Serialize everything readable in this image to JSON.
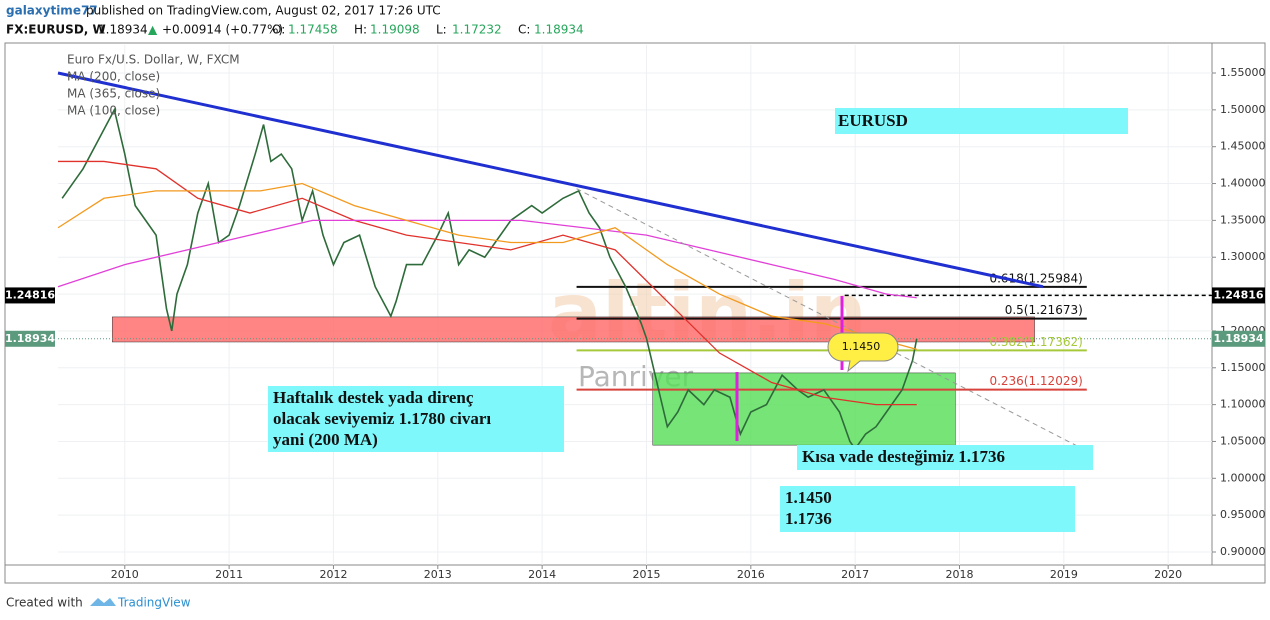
{
  "chart_data": {
    "type": "line",
    "header": {
      "author": "galaxytime77",
      "published": "published on TradingView.com, August 02, 2017 17:26 UTC",
      "symbol": "FX:EURUSD, W",
      "last": "1.18934",
      "arrow": "▲",
      "change": "+0.00914 (+0.77%)",
      "ohlc": [
        {
          "label": "O:",
          "value": "1.17458"
        },
        {
          "label": "H:",
          "value": "1.19098"
        },
        {
          "label": "L:",
          "value": "1.17232"
        },
        {
          "label": "C:",
          "value": "1.18934"
        }
      ]
    },
    "legend": [
      "Euro Fx/U.S. Dollar, W, FXCM",
      "MA (200, close)",
      "MA (365, close)",
      "MA (100, close)"
    ],
    "xlim": [
      2009.36,
      2020.42
    ],
    "xticks": [
      2010,
      2011,
      2012,
      2013,
      2014,
      2015,
      2016,
      2017,
      2018,
      2019,
      2020
    ],
    "ylim": [
      0.862,
      1.588
    ],
    "yticks": [
      {
        "value": 0.9,
        "label": "0.90000"
      },
      {
        "value": 0.95,
        "label": "0.95000"
      },
      {
        "value": 1.0,
        "label": "1.00000"
      },
      {
        "value": 1.05,
        "label": "1.05000"
      },
      {
        "value": 1.1,
        "label": "1.10000"
      },
      {
        "value": 1.15,
        "label": "1.15000"
      },
      {
        "value": 1.2,
        "label": "1.20000"
      },
      {
        "value": 1.25,
        "label": "1.25000"
      },
      {
        "value": 1.3,
        "label": "1.30000"
      },
      {
        "value": 1.35,
        "label": "1.35000"
      },
      {
        "value": 1.4,
        "label": "1.40000"
      },
      {
        "value": 1.45,
        "label": "1.45000"
      },
      {
        "value": 1.5,
        "label": "1.50000"
      },
      {
        "value": 1.55,
        "label": "1.55000"
      }
    ],
    "grid": true,
    "series": [
      {
        "name": "Euro Fx/U.S. Dollar, W, FXCM",
        "color": "#2e6b3a",
        "x": [
          2009.4,
          2009.5,
          2009.6,
          2009.75,
          2009.9,
          2010.0,
          2010.1,
          2010.2,
          2010.3,
          2010.4,
          2010.45,
          2010.5,
          2010.6,
          2010.7,
          2010.8,
          2010.9,
          2011.0,
          2011.1,
          2011.25,
          2011.33,
          2011.4,
          2011.5,
          2011.6,
          2011.7,
          2011.8,
          2011.9,
          2012.0,
          2012.1,
          2012.25,
          2012.4,
          2012.55,
          2012.6,
          2012.7,
          2012.85,
          2013.0,
          2013.1,
          2013.2,
          2013.3,
          2013.45,
          2013.55,
          2013.7,
          2013.9,
          2014.0,
          2014.2,
          2014.35,
          2014.45,
          2014.55,
          2014.65,
          2014.8,
          2014.95,
          2015.0,
          2015.1,
          2015.2,
          2015.3,
          2015.4,
          2015.55,
          2015.65,
          2015.8,
          2015.9,
          2016.0,
          2016.15,
          2016.3,
          2016.45,
          2016.55,
          2016.7,
          2016.85,
          2016.95,
          2017.0,
          2017.1,
          2017.2,
          2017.3,
          2017.45,
          2017.55,
          2017.59
        ],
        "values": [
          1.38,
          1.4,
          1.42,
          1.46,
          1.5,
          1.44,
          1.37,
          1.35,
          1.33,
          1.23,
          1.2,
          1.25,
          1.29,
          1.36,
          1.4,
          1.32,
          1.33,
          1.37,
          1.44,
          1.48,
          1.43,
          1.44,
          1.42,
          1.35,
          1.39,
          1.33,
          1.29,
          1.32,
          1.33,
          1.26,
          1.22,
          1.24,
          1.29,
          1.29,
          1.33,
          1.36,
          1.29,
          1.31,
          1.3,
          1.32,
          1.35,
          1.37,
          1.36,
          1.38,
          1.39,
          1.36,
          1.34,
          1.3,
          1.26,
          1.21,
          1.19,
          1.13,
          1.07,
          1.09,
          1.12,
          1.1,
          1.12,
          1.11,
          1.06,
          1.09,
          1.1,
          1.14,
          1.12,
          1.11,
          1.12,
          1.09,
          1.05,
          1.04,
          1.06,
          1.07,
          1.09,
          1.12,
          1.16,
          1.18934
        ]
      },
      {
        "name": "MA (200, close)",
        "color": "#e0312b",
        "x": [
          2009.36,
          2009.8,
          2010.3,
          2010.7,
          2011.2,
          2011.7,
          2012.2,
          2012.7,
          2013.2,
          2013.7,
          2014.2,
          2014.7,
          2015.2,
          2015.7,
          2016.2,
          2016.7,
          2017.2,
          2017.59
        ],
        "values": [
          1.43,
          1.43,
          1.42,
          1.38,
          1.36,
          1.38,
          1.35,
          1.33,
          1.32,
          1.31,
          1.33,
          1.31,
          1.24,
          1.17,
          1.13,
          1.11,
          1.1,
          1.1
        ]
      },
      {
        "name": "MA (365, close)",
        "color": "#e040d8",
        "x": [
          2009.36,
          2010.0,
          2010.6,
          2011.2,
          2011.8,
          2012.5,
          2013.2,
          2013.8,
          2014.4,
          2015.0,
          2015.6,
          2016.2,
          2016.8,
          2017.3,
          2017.59
        ],
        "values": [
          1.26,
          1.29,
          1.31,
          1.33,
          1.35,
          1.35,
          1.35,
          1.35,
          1.34,
          1.33,
          1.31,
          1.29,
          1.27,
          1.25,
          1.245
        ]
      },
      {
        "name": "MA (100, close)",
        "color": "#f39a1e",
        "x": [
          2009.36,
          2009.8,
          2010.3,
          2010.8,
          2011.3,
          2011.7,
          2012.2,
          2012.7,
          2013.2,
          2013.7,
          2014.2,
          2014.7,
          2015.2,
          2015.7,
          2016.2,
          2016.7,
          2017.2,
          2017.59
        ],
        "values": [
          1.34,
          1.38,
          1.39,
          1.39,
          1.39,
          1.4,
          1.37,
          1.35,
          1.33,
          1.32,
          1.32,
          1.34,
          1.29,
          1.25,
          1.22,
          1.21,
          1.19,
          1.175
        ]
      }
    ],
    "trendlines": [
      {
        "color": "#1f2fd0",
        "x": [
          2009.36,
          2018.8
        ],
        "values": [
          1.55,
          1.26
        ]
      },
      {
        "color": "#999999",
        "x": [
          2014.33,
          2019.25
        ],
        "values": [
          1.393,
          1.035
        ]
      }
    ],
    "zones": [
      {
        "color": "#ff6666",
        "x": [
          2009.88,
          2018.72
        ],
        "values": [
          1.185,
          1.219
        ]
      },
      {
        "color": "#55dd55",
        "x": [
          2015.06,
          2017.96
        ],
        "values": [
          1.045,
          1.143
        ]
      }
    ],
    "fib_x": [
      2014.33,
      2019.22
    ],
    "fib_levels": [
      {
        "label": "0.618(1.25984)",
        "value": 1.25984,
        "color": "#111111"
      },
      {
        "label": "0.5(1.21673)",
        "value": 1.21673,
        "color": "#111111"
      },
      {
        "label": "0.382(1.17362)",
        "value": 1.17362,
        "color": "#a6c93a"
      },
      {
        "label": "0.236(1.12029)",
        "value": 1.12029,
        "color": "#d8423a"
      }
    ],
    "price_tags": [
      {
        "label": "1.24816",
        "value": 1.24816,
        "color": "#000000"
      },
      {
        "label": "1.18934",
        "value": 1.18934,
        "color": "#5c9a7e"
      }
    ],
    "annotations": {
      "title_box": "EURUSD",
      "note": [
        "Haftalık destek yada direnç",
        "olacak seviyemiz 1.1780 civarı",
        "yani (200 MA)"
      ],
      "support": "Kısa vade desteğimiz 1.1736",
      "levels": [
        "1.1450",
        "1.1736"
      ],
      "callout": "1.1450"
    },
    "watermark": [
      "altin.in",
      "Panriver"
    ],
    "footer": {
      "created": "Created with",
      "brand": "TradingView"
    }
  }
}
